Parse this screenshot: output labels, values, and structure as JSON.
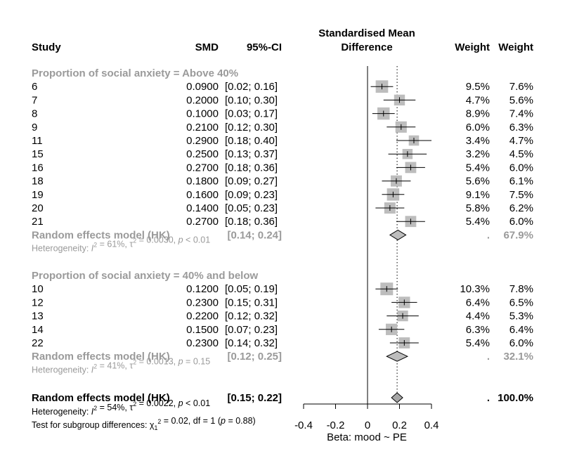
{
  "chart_data": {
    "type": "forest",
    "headers": {
      "study": "Study",
      "smd": "SMD",
      "ci": "95%-CI",
      "plot_line1": "Standardised Mean",
      "plot_line2": "Difference",
      "weight_common": "Weight",
      "weight_random": "Weight"
    },
    "groups": [
      {
        "label": "Proportion of social anxiety = Above 40%",
        "studies": [
          {
            "study": "6",
            "smd": "0.0900",
            "ci": "[0.02; 0.16]",
            "w_common": "9.5%",
            "w_random": "7.6%",
            "est": 0.09,
            "lo": 0.02,
            "hi": 0.16,
            "weight": 9.5
          },
          {
            "study": "7",
            "smd": "0.2000",
            "ci": "[0.10; 0.30]",
            "w_common": "4.7%",
            "w_random": "5.6%",
            "est": 0.2,
            "lo": 0.1,
            "hi": 0.3,
            "weight": 4.7
          },
          {
            "study": "8",
            "smd": "0.1000",
            "ci": "[0.03; 0.17]",
            "w_common": "8.9%",
            "w_random": "7.4%",
            "est": 0.1,
            "lo": 0.03,
            "hi": 0.17,
            "weight": 8.9
          },
          {
            "study": "9",
            "smd": "0.2100",
            "ci": "[0.12; 0.30]",
            "w_common": "6.0%",
            "w_random": "6.3%",
            "est": 0.21,
            "lo": 0.12,
            "hi": 0.3,
            "weight": 6.0
          },
          {
            "study": "11",
            "smd": "0.2900",
            "ci": "[0.18; 0.40]",
            "w_common": "3.4%",
            "w_random": "4.7%",
            "est": 0.29,
            "lo": 0.18,
            "hi": 0.4,
            "weight": 3.4
          },
          {
            "study": "15",
            "smd": "0.2500",
            "ci": "[0.13; 0.37]",
            "w_common": "3.2%",
            "w_random": "4.5%",
            "est": 0.25,
            "lo": 0.13,
            "hi": 0.37,
            "weight": 3.2
          },
          {
            "study": "16",
            "smd": "0.2700",
            "ci": "[0.18; 0.36]",
            "w_common": "5.4%",
            "w_random": "6.0%",
            "est": 0.27,
            "lo": 0.18,
            "hi": 0.36,
            "weight": 5.4
          },
          {
            "study": "18",
            "smd": "0.1800",
            "ci": "[0.09; 0.27]",
            "w_common": "5.6%",
            "w_random": "6.1%",
            "est": 0.18,
            "lo": 0.09,
            "hi": 0.27,
            "weight": 5.6
          },
          {
            "study": "19",
            "smd": "0.1600",
            "ci": "[0.09; 0.23]",
            "w_common": "9.1%",
            "w_random": "7.5%",
            "est": 0.16,
            "lo": 0.09,
            "hi": 0.23,
            "weight": 9.1
          },
          {
            "study": "20",
            "smd": "0.1400",
            "ci": "[0.05; 0.23]",
            "w_common": "5.8%",
            "w_random": "6.2%",
            "est": 0.14,
            "lo": 0.05,
            "hi": 0.23,
            "weight": 5.8
          },
          {
            "study": "21",
            "smd": "0.2700",
            "ci": "[0.18; 0.36]",
            "w_common": "5.4%",
            "w_random": "6.0%",
            "est": 0.27,
            "lo": 0.18,
            "hi": 0.36,
            "weight": 5.4
          }
        ],
        "model": {
          "label": "Random effects model (HK)",
          "ci": "[0.14; 0.24]",
          "w_common": ".",
          "w_random": "67.9%",
          "est": 0.19,
          "lo": 0.14,
          "hi": 0.24
        },
        "heterogeneity": "Heterogeneity: I² = 61%, τ² = 0.0030, p < 0.01"
      },
      {
        "label": "Proportion of social anxiety = 40% and below",
        "studies": [
          {
            "study": "10",
            "smd": "0.1200",
            "ci": "[0.05; 0.19]",
            "w_common": "10.3%",
            "w_random": "7.8%",
            "est": 0.12,
            "lo": 0.05,
            "hi": 0.19,
            "weight": 10.3
          },
          {
            "study": "12",
            "smd": "0.2300",
            "ci": "[0.15; 0.31]",
            "w_common": "6.4%",
            "w_random": "6.5%",
            "est": 0.23,
            "lo": 0.15,
            "hi": 0.31,
            "weight": 6.4
          },
          {
            "study": "13",
            "smd": "0.2200",
            "ci": "[0.12; 0.32]",
            "w_common": "4.4%",
            "w_random": "5.3%",
            "est": 0.22,
            "lo": 0.12,
            "hi": 0.32,
            "weight": 4.4
          },
          {
            "study": "14",
            "smd": "0.1500",
            "ci": "[0.07; 0.23]",
            "w_common": "6.3%",
            "w_random": "6.4%",
            "est": 0.15,
            "lo": 0.07,
            "hi": 0.23,
            "weight": 6.3
          },
          {
            "study": "22",
            "smd": "0.2300",
            "ci": "[0.14; 0.32]",
            "w_common": "5.4%",
            "w_random": "6.0%",
            "est": 0.23,
            "lo": 0.14,
            "hi": 0.32,
            "weight": 5.4
          }
        ],
        "model": {
          "label": "Random effects model (HK)",
          "ci": "[0.12; 0.25]",
          "w_common": ".",
          "w_random": "32.1%",
          "est": 0.185,
          "lo": 0.12,
          "hi": 0.25
        },
        "heterogeneity": "Heterogeneity: I² = 41%, τ² = 0.0013, p = 0.15"
      }
    ],
    "overall": {
      "label": "Random effects model (HK)",
      "ci": "[0.15; 0.22]",
      "w_common": ".",
      "w_random": "100.0%",
      "est": 0.185,
      "lo": 0.15,
      "hi": 0.22,
      "heterogeneity": "Heterogeneity: I² = 54%, τ² = 0.0022, p < 0.01",
      "subgroup_test": "Test for subgroup differences: χ₁² = 0.02, df = 1 (p = 0.88)"
    },
    "x_axis": {
      "ticks": [
        -0.4,
        -0.2,
        0,
        0.2,
        0.4
      ],
      "tick_labels": [
        "-0.4",
        "-0.2",
        "0",
        "0.2",
        "0.4"
      ],
      "xlim": [
        -0.4,
        0.4
      ],
      "label": "Beta: mood ~ PE",
      "reference_line": 0,
      "summary_line": 0.185
    },
    "colors": {
      "text": "#000000",
      "subgroup_text": "#9a9a9a",
      "square_fill": "#bdbdbd",
      "diamond_fill_subgroup": "#bdbdbd",
      "diamond_fill_overall": "#a6a6a6"
    }
  }
}
